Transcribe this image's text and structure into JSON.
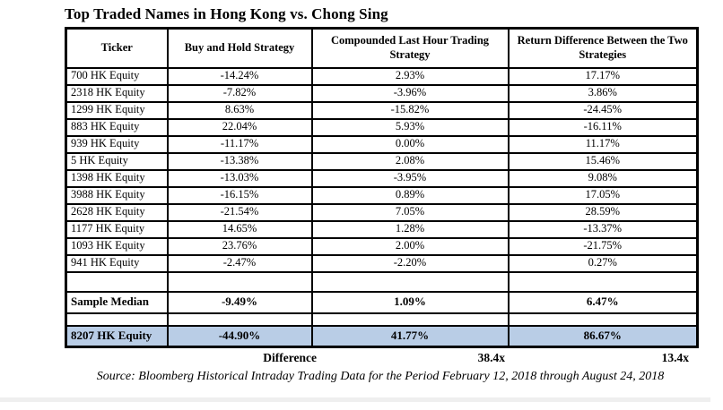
{
  "title": "Top Traded Names in Hong Kong vs. Chong Sing",
  "table": {
    "headers": [
      "Ticker",
      "Buy and Hold Strategy",
      "Compounded Last Hour Trading Strategy",
      "Return Difference Between the Two Strategies"
    ],
    "rows": [
      {
        "type": "data",
        "cells": [
          "700 HK Equity",
          "-14.24%",
          "2.93%",
          "17.17%"
        ]
      },
      {
        "type": "data",
        "cells": [
          "2318 HK Equity",
          "-7.82%",
          "-3.96%",
          "3.86%"
        ]
      },
      {
        "type": "data",
        "cells": [
          "1299 HK Equity",
          "8.63%",
          "-15.82%",
          "-24.45%"
        ]
      },
      {
        "type": "data",
        "cells": [
          "883 HK Equity",
          "22.04%",
          "5.93%",
          "-16.11%"
        ]
      },
      {
        "type": "data",
        "cells": [
          "939 HK Equity",
          "-11.17%",
          "0.00%",
          "11.17%"
        ]
      },
      {
        "type": "data",
        "cells": [
          "5 HK Equity",
          "-13.38%",
          "2.08%",
          "15.46%"
        ]
      },
      {
        "type": "data",
        "cells": [
          "1398 HK Equity",
          "-13.03%",
          "-3.95%",
          "9.08%"
        ]
      },
      {
        "type": "data",
        "cells": [
          "3988 HK Equity",
          "-16.15%",
          "0.89%",
          "17.05%"
        ]
      },
      {
        "type": "data",
        "cells": [
          "2628 HK Equity",
          "-21.54%",
          "7.05%",
          "28.59%"
        ]
      },
      {
        "type": "data",
        "cells": [
          "1177 HK Equity",
          "14.65%",
          "1.28%",
          "-13.37%"
        ]
      },
      {
        "type": "data",
        "cells": [
          "1093 HK Equity",
          "23.76%",
          "2.00%",
          "-21.75%"
        ]
      },
      {
        "type": "data",
        "cells": [
          "941 HK Equity",
          "-2.47%",
          "-2.20%",
          "0.27%"
        ]
      },
      {
        "type": "spacer",
        "cells": [
          "",
          "",
          "",
          ""
        ]
      },
      {
        "type": "median",
        "cells": [
          "Sample Median",
          "-9.49%",
          "1.09%",
          "6.47%"
        ]
      },
      {
        "type": "spacer2",
        "cells": [
          "",
          "",
          "",
          ""
        ]
      },
      {
        "type": "highlight",
        "cells": [
          "8207 HK Equity",
          "-44.90%",
          "41.77%",
          "86.67%"
        ]
      }
    ]
  },
  "difference": {
    "label": "Difference",
    "compounded_multiple": "38.4x",
    "return_diff_multiple": "13.4x"
  },
  "source": "Source: Bloomberg Historical Intraday Trading Data for the Period February 12, 2018 through August 24, 2018",
  "colors": {
    "highlight_row": "#b9cde6",
    "border": "#000000",
    "background": "#ffffff"
  }
}
